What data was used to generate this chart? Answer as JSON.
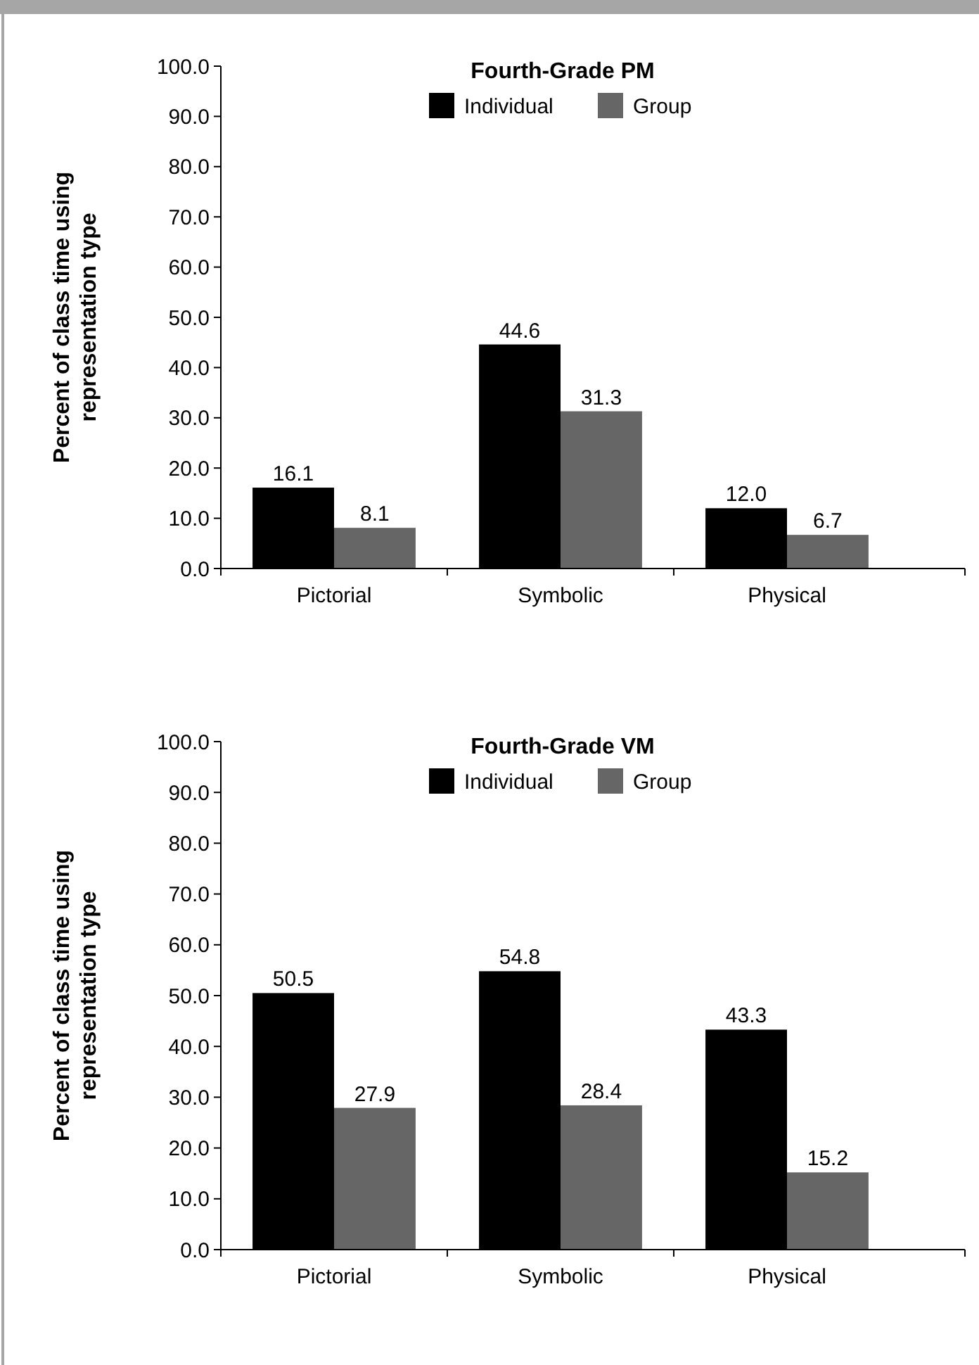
{
  "chart_data": [
    {
      "type": "bar",
      "title": "Fourth-Grade PM",
      "ylabel": "Percent of class time using representation type",
      "categories": [
        "Pictorial",
        "Symbolic",
        "Physical"
      ],
      "series": [
        {
          "name": "Individual",
          "color": "#000000",
          "values": [
            16.1,
            44.6,
            12.0
          ],
          "value_labels": [
            "16.1",
            "44.6",
            "12.0"
          ]
        },
        {
          "name": "Group",
          "color": "#666666",
          "values": [
            8.1,
            31.3,
            6.7
          ],
          "value_labels": [
            "8.1",
            "31.3",
            "6.7"
          ]
        }
      ],
      "ylim": [
        0,
        100
      ],
      "yticks": [
        {
          "value": 0,
          "label": "0.0"
        },
        {
          "value": 10,
          "label": "10.0"
        },
        {
          "value": 20,
          "label": "20.0"
        },
        {
          "value": 30,
          "label": "30.0"
        },
        {
          "value": 40,
          "label": "40.0"
        },
        {
          "value": 50,
          "label": "50.0"
        },
        {
          "value": 60,
          "label": "60.0"
        },
        {
          "value": 70,
          "label": "70.0"
        },
        {
          "value": 80,
          "label": "80.0"
        },
        {
          "value": 90,
          "label": "90.0"
        },
        {
          "value": 100,
          "label": "100.0"
        }
      ],
      "legend": "top"
    },
    {
      "type": "bar",
      "title": "Fourth-Grade VM",
      "ylabel": "Percent of class time using representation type",
      "categories": [
        "Pictorial",
        "Symbolic",
        "Physical"
      ],
      "series": [
        {
          "name": "Individual",
          "color": "#000000",
          "values": [
            50.5,
            54.8,
            43.3
          ],
          "value_labels": [
            "50.5",
            "54.8",
            "43.3"
          ]
        },
        {
          "name": "Group",
          "color": "#666666",
          "values": [
            27.9,
            28.4,
            15.2
          ],
          "value_labels": [
            "27.9",
            "28.4",
            "15.2"
          ]
        }
      ],
      "ylim": [
        0,
        100
      ],
      "yticks": [
        {
          "value": 0,
          "label": "0.0"
        },
        {
          "value": 10,
          "label": "10.0"
        },
        {
          "value": 20,
          "label": "20.0"
        },
        {
          "value": 30,
          "label": "30.0"
        },
        {
          "value": 40,
          "label": "40.0"
        },
        {
          "value": 50,
          "label": "50.0"
        },
        {
          "value": 60,
          "label": "60.0"
        },
        {
          "value": 70,
          "label": "70.0"
        },
        {
          "value": 80,
          "label": "80.0"
        },
        {
          "value": 90,
          "label": "90.0"
        },
        {
          "value": 100,
          "label": "100.0"
        }
      ],
      "legend": "top"
    }
  ]
}
